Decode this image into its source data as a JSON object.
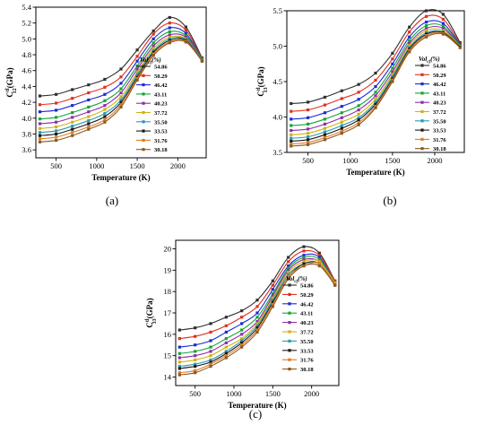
{
  "legend": {
    "title": "Vol",
    "title_sub": "cf",
    "title_suffix": "(%)",
    "entries": [
      "54.86",
      "50.29",
      "46.42",
      "43.11",
      "40.23",
      "37.72",
      "35.50",
      "33.53",
      "31.76",
      "30.18"
    ],
    "colors": [
      "#303030",
      "#e0301e",
      "#1a2bd6",
      "#15a637",
      "#8e2ea8",
      "#d2b20e",
      "#2a9bb0",
      "#1a1a1a",
      "#e07b28",
      "#8a5a1e"
    ]
  },
  "chart_data": [
    {
      "type": "line",
      "panel": "(a)",
      "ylabel_main": "C",
      "ylabel_sup": "tl",
      "ylabel_sub": "12",
      "ylabel_unit": "(GPa)",
      "xlabel": "Temperature (K)",
      "xlim": [
        250,
        2350
      ],
      "ylim": [
        3.5,
        5.4
      ],
      "xticks": [
        500,
        1000,
        1500,
        2000
      ],
      "yticks": [
        3.6,
        3.8,
        4.0,
        4.2,
        4.4,
        4.6,
        4.8,
        5.0,
        5.2,
        5.4
      ],
      "ytick_labels": [
        "3.6",
        "3.8",
        "4.0",
        "4.2",
        "4.4",
        "4.6",
        "4.8",
        "5.0",
        "5.2",
        "5.4"
      ],
      "shape": {
        "x": [
          300,
          500,
          700,
          900,
          1100,
          1300,
          1500,
          1700,
          1900,
          2100,
          2300
        ]
      },
      "series": [
        {
          "name": "54.86",
          "values": [
            4.28,
            4.3,
            4.36,
            4.42,
            4.49,
            4.62,
            4.86,
            5.1,
            5.27,
            5.15,
            4.76
          ]
        },
        {
          "name": "50.29",
          "values": [
            4.17,
            4.19,
            4.25,
            4.32,
            4.39,
            4.52,
            4.78,
            5.06,
            5.2,
            5.11,
            4.75
          ]
        },
        {
          "name": "46.42",
          "values": [
            4.08,
            4.1,
            4.16,
            4.23,
            4.3,
            4.44,
            4.72,
            5.0,
            5.14,
            5.07,
            4.74
          ]
        },
        {
          "name": "43.11",
          "values": [
            3.99,
            4.01,
            4.07,
            4.14,
            4.22,
            4.37,
            4.66,
            4.95,
            5.09,
            5.04,
            4.74
          ]
        },
        {
          "name": "40.23",
          "values": [
            3.93,
            3.95,
            4.01,
            4.08,
            4.16,
            4.32,
            4.62,
            4.91,
            5.05,
            5.02,
            4.73
          ]
        },
        {
          "name": "37.72",
          "values": [
            3.87,
            3.89,
            3.95,
            4.02,
            4.11,
            4.27,
            4.58,
            4.88,
            5.02,
            5.0,
            4.73
          ]
        },
        {
          "name": "35.50",
          "values": [
            3.82,
            3.84,
            3.9,
            3.97,
            4.06,
            4.23,
            4.55,
            4.85,
            5.0,
            4.99,
            4.73
          ]
        },
        {
          "name": "33.53",
          "values": [
            3.78,
            3.8,
            3.86,
            3.93,
            4.02,
            4.2,
            4.52,
            4.83,
            4.98,
            4.98,
            4.72
          ]
        },
        {
          "name": "31.76",
          "values": [
            3.74,
            3.76,
            3.82,
            3.89,
            3.98,
            4.17,
            4.5,
            4.81,
            4.96,
            4.97,
            4.72
          ]
        },
        {
          "name": "30.18",
          "values": [
            3.7,
            3.72,
            3.78,
            3.86,
            3.95,
            4.14,
            4.48,
            4.79,
            4.95,
            4.96,
            4.72
          ]
        }
      ]
    },
    {
      "type": "line",
      "panel": "(b)",
      "ylabel_main": "C",
      "ylabel_sup": "tl",
      "ylabel_sub": "13",
      "ylabel_unit": "(GPa)",
      "xlabel": "Temperature (K)",
      "xlim": [
        250,
        2350
      ],
      "ylim": [
        3.5,
        5.5
      ],
      "xticks": [
        500,
        1000,
        1500,
        2000
      ],
      "yticks": [
        3.5,
        4.0,
        4.5,
        5.0,
        5.5
      ],
      "ytick_labels": [
        "3.5",
        "4.0",
        "4.5",
        "5.0",
        "5.5"
      ],
      "shape": {
        "x": [
          300,
          500,
          700,
          900,
          1100,
          1300,
          1500,
          1700,
          1900,
          2100,
          2300
        ]
      },
      "series": [
        {
          "name": "54.86",
          "values": [
            4.19,
            4.21,
            4.28,
            4.37,
            4.46,
            4.62,
            4.9,
            5.27,
            5.5,
            5.45,
            5.05
          ]
        },
        {
          "name": "50.29",
          "values": [
            4.08,
            4.1,
            4.17,
            4.26,
            4.35,
            4.52,
            4.82,
            5.2,
            5.42,
            5.38,
            5.03
          ]
        },
        {
          "name": "46.42",
          "values": [
            3.97,
            3.99,
            4.06,
            4.15,
            4.25,
            4.43,
            4.75,
            5.13,
            5.34,
            5.32,
            5.02
          ]
        },
        {
          "name": "43.11",
          "values": [
            3.88,
            3.9,
            3.97,
            4.06,
            4.16,
            4.35,
            4.69,
            5.08,
            5.29,
            5.28,
            5.01
          ]
        },
        {
          "name": "40.23",
          "values": [
            3.81,
            3.83,
            3.9,
            3.99,
            4.1,
            4.3,
            4.64,
            5.04,
            5.25,
            5.25,
            5.0
          ]
        },
        {
          "name": "37.72",
          "values": [
            3.75,
            3.77,
            3.84,
            3.93,
            4.04,
            4.25,
            4.6,
            5.01,
            5.22,
            5.22,
            5.0
          ]
        },
        {
          "name": "35.50",
          "values": [
            3.7,
            3.72,
            3.79,
            3.88,
            3.99,
            4.21,
            4.57,
            4.98,
            5.19,
            5.2,
            4.99
          ]
        },
        {
          "name": "33.53",
          "values": [
            3.66,
            3.68,
            3.75,
            3.84,
            3.96,
            4.18,
            4.54,
            4.96,
            5.17,
            5.19,
            4.99
          ]
        },
        {
          "name": "31.76",
          "values": [
            3.62,
            3.64,
            3.71,
            3.8,
            3.92,
            4.15,
            4.52,
            4.94,
            5.15,
            5.18,
            4.98
          ]
        },
        {
          "name": "30.18",
          "values": [
            3.59,
            3.61,
            3.68,
            3.77,
            3.89,
            4.13,
            4.5,
            4.92,
            5.13,
            5.17,
            4.98
          ]
        }
      ]
    },
    {
      "type": "line",
      "panel": "(c)",
      "ylabel_main": "C",
      "ylabel_sup": "tl",
      "ylabel_sub": "33",
      "ylabel_unit": "(GPa)",
      "xlabel": "Temperature (K)",
      "xlim": [
        250,
        2350
      ],
      "ylim": [
        13.6,
        20.4
      ],
      "xticks": [
        500,
        1000,
        1500,
        2000
      ],
      "yticks": [
        14,
        15,
        16,
        17,
        18,
        19,
        20
      ],
      "ytick_labels": [
        "14",
        "15",
        "16",
        "17",
        "18",
        "19",
        "20"
      ],
      "shape": {
        "x": [
          300,
          500,
          700,
          900,
          1100,
          1300,
          1500,
          1700,
          1900,
          2100,
          2300
        ]
      },
      "series": [
        {
          "name": "54.86",
          "values": [
            16.2,
            16.3,
            16.5,
            16.8,
            17.1,
            17.6,
            18.5,
            19.6,
            20.1,
            19.8,
            18.5
          ]
        },
        {
          "name": "50.29",
          "values": [
            15.8,
            15.9,
            16.1,
            16.4,
            16.8,
            17.3,
            18.3,
            19.4,
            19.9,
            19.7,
            18.5
          ]
        },
        {
          "name": "46.42",
          "values": [
            15.4,
            15.5,
            15.7,
            16.1,
            16.5,
            17.0,
            18.1,
            19.2,
            19.7,
            19.6,
            18.4
          ]
        },
        {
          "name": "43.11",
          "values": [
            15.1,
            15.2,
            15.4,
            15.8,
            16.2,
            16.8,
            17.9,
            19.1,
            19.6,
            19.5,
            18.4
          ]
        },
        {
          "name": "40.23",
          "values": [
            14.9,
            15.0,
            15.2,
            15.6,
            16.0,
            16.6,
            17.8,
            19.0,
            19.5,
            19.4,
            18.4
          ]
        },
        {
          "name": "37.72",
          "values": [
            14.7,
            14.8,
            15.0,
            15.4,
            15.8,
            16.5,
            17.7,
            18.9,
            19.4,
            19.4,
            18.4
          ]
        },
        {
          "name": "35.50",
          "values": [
            14.5,
            14.6,
            14.8,
            15.2,
            15.7,
            16.4,
            17.6,
            18.8,
            19.3,
            19.3,
            18.3
          ]
        },
        {
          "name": "33.53",
          "values": [
            14.4,
            14.5,
            14.7,
            15.1,
            15.6,
            16.3,
            17.5,
            18.7,
            19.3,
            19.3,
            18.3
          ]
        },
        {
          "name": "31.76",
          "values": [
            14.2,
            14.3,
            14.6,
            15.0,
            15.5,
            16.2,
            17.4,
            18.7,
            19.2,
            19.3,
            18.3
          ]
        },
        {
          "name": "30.18",
          "values": [
            14.1,
            14.2,
            14.5,
            14.9,
            15.4,
            16.1,
            17.3,
            18.6,
            19.2,
            19.2,
            18.3
          ]
        }
      ]
    }
  ]
}
